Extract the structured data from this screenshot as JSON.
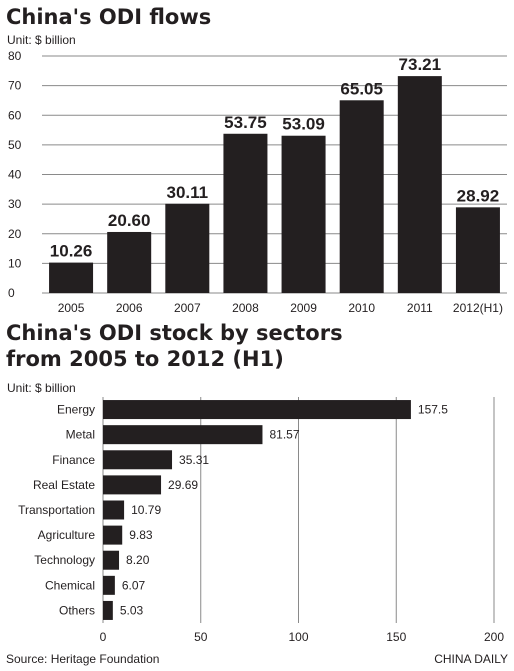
{
  "charts": [
    {
      "title": "China's ODI flows",
      "unit": "Unit: $ billion"
    },
    {
      "title_lines": [
        "China's ODI stock by sectors",
        "from 2005 to 2012 (H1)"
      ],
      "unit": "Unit: $ billion"
    }
  ],
  "footer": {
    "source": "Source: Heritage Foundation",
    "credit": "CHINA DAILY"
  },
  "colors": {
    "bar": "#231f20",
    "grid": "#8a8a8a",
    "text": "#231f20"
  },
  "chart_data": [
    {
      "type": "bar",
      "title": "China's ODI flows",
      "ylabel": "Unit: $ billion",
      "categories": [
        "2005",
        "2006",
        "2007",
        "2008",
        "2009",
        "2010",
        "2011",
        "2012(H1)"
      ],
      "values": [
        10.26,
        20.6,
        30.11,
        53.75,
        53.09,
        65.05,
        73.21,
        28.92
      ],
      "value_labels": [
        "10.26",
        "20.60",
        "30.11",
        "53.75",
        "53.09",
        "65.05",
        "73.21",
        "28.92"
      ],
      "ylim": [
        0,
        80
      ],
      "yticks": [
        0,
        10,
        20,
        30,
        40,
        50,
        60,
        70,
        80
      ],
      "grid": "horizontal"
    },
    {
      "type": "bar",
      "orientation": "horizontal",
      "title": "China's ODI stock by sectors from 2005 to 2012 (H1)",
      "xlabel": "Unit: $ billion",
      "categories": [
        "Energy",
        "Metal",
        "Finance",
        "Real Estate",
        "Transportation",
        "Agriculture",
        "Technology",
        "Chemical",
        "Others"
      ],
      "values": [
        157.5,
        81.57,
        35.31,
        29.69,
        10.79,
        9.83,
        8.2,
        6.07,
        5.03
      ],
      "value_labels": [
        "157.5",
        "81.57",
        "35.31",
        "29.69",
        "10.79",
        "9.83",
        "8.20",
        "6.07",
        "5.03"
      ],
      "xlim": [
        0,
        200
      ],
      "xticks": [
        0,
        50,
        100,
        150,
        200
      ],
      "grid": "vertical"
    }
  ]
}
